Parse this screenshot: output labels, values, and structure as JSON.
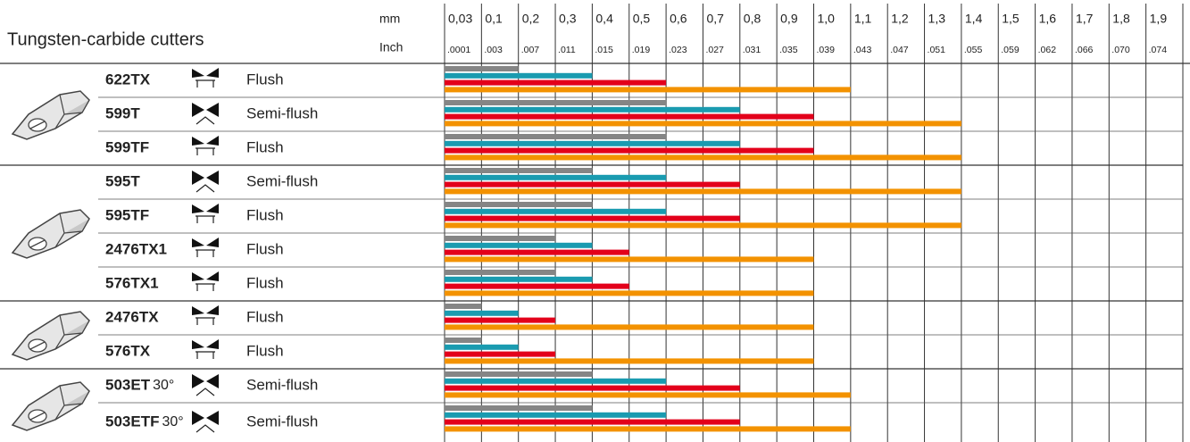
{
  "chart_data": {
    "type": "bar",
    "title": "Tungsten-carbide cutters",
    "xlabel": "mm",
    "x2label": "Inch",
    "categories": [
      "622TX",
      "599T",
      "599TF",
      "595T",
      "595TF",
      "2476TX1",
      "576TX1",
      "2476TX",
      "576TX",
      "503ET",
      "503ETF"
    ],
    "angles": [
      null,
      null,
      null,
      null,
      null,
      null,
      null,
      null,
      null,
      "30°",
      "30°"
    ],
    "cut_types": [
      "Flush",
      "Semi-flush",
      "Flush",
      "Semi-flush",
      "Flush",
      "Flush",
      "Flush",
      "Flush",
      "Flush",
      "Semi-flush",
      "Semi-flush"
    ],
    "xticks": [
      {
        "value": 0.03,
        "label": "0,03"
      },
      {
        "value": 0.1,
        "label": "0,1"
      },
      {
        "value": 0.2,
        "label": "0,2"
      },
      {
        "value": 0.3,
        "label": "0,3"
      },
      {
        "value": 0.4,
        "label": "0,4"
      },
      {
        "value": 0.5,
        "label": "0,5"
      },
      {
        "value": 0.6,
        "label": "0,6"
      },
      {
        "value": 0.7,
        "label": "0,7"
      },
      {
        "value": 0.8,
        "label": "0,8"
      },
      {
        "value": 0.9,
        "label": "0,9"
      },
      {
        "value": 1.0,
        "label": "1,0"
      },
      {
        "value": 1.1,
        "label": "1,1"
      },
      {
        "value": 1.2,
        "label": "1,2"
      },
      {
        "value": 1.3,
        "label": "1,3"
      },
      {
        "value": 1.4,
        "label": "1,4"
      },
      {
        "value": 1.5,
        "label": "1,5"
      },
      {
        "value": 1.6,
        "label": "1,6"
      },
      {
        "value": 1.7,
        "label": "1,7"
      },
      {
        "value": 1.8,
        "label": "1,8"
      },
      {
        "value": 1.9,
        "label": "1,9"
      }
    ],
    "x2ticks": [
      {
        "value": 0.0001,
        "label": ".0001"
      },
      {
        "value": 0.003,
        "label": ".003"
      },
      {
        "value": 0.007,
        "label": ".007"
      },
      {
        "value": 0.011,
        "label": ".011"
      },
      {
        "value": 0.015,
        "label": ".015"
      },
      {
        "value": 0.019,
        "label": ".019"
      },
      {
        "value": 0.023,
        "label": ".023"
      },
      {
        "value": 0.027,
        "label": ".027"
      },
      {
        "value": 0.031,
        "label": ".031"
      },
      {
        "value": 0.035,
        "label": ".035"
      },
      {
        "value": 0.039,
        "label": ".039"
      },
      {
        "value": 0.043,
        "label": ".043"
      },
      {
        "value": 0.047,
        "label": ".047"
      },
      {
        "value": 0.051,
        "label": ".051"
      },
      {
        "value": 0.055,
        "label": ".055"
      },
      {
        "value": 0.059,
        "label": ".059"
      },
      {
        "value": 0.062,
        "label": ".062"
      },
      {
        "value": 0.066,
        "label": ".066"
      },
      {
        "value": 0.07,
        "label": ".070"
      },
      {
        "value": 0.074,
        "label": ".074"
      }
    ],
    "series": [
      {
        "color": "#858585",
        "values": [
          0.1,
          0.5,
          0.5,
          0.3,
          0.3,
          0.2,
          0.2,
          0.03,
          0.03,
          0.3,
          0.3
        ]
      },
      {
        "color": "#1a9bb0",
        "values": [
          0.3,
          0.7,
          0.7,
          0.5,
          0.5,
          0.3,
          0.3,
          0.1,
          0.1,
          0.5,
          0.5
        ]
      },
      {
        "color": "#e3001b",
        "values": [
          0.5,
          0.9,
          0.9,
          0.7,
          0.7,
          0.4,
          0.4,
          0.2,
          0.2,
          0.7,
          0.7
        ]
      },
      {
        "color": "#f39200",
        "values": [
          1.0,
          1.3,
          1.3,
          1.3,
          1.3,
          0.9,
          0.9,
          0.9,
          0.9,
          1.0,
          1.0
        ]
      }
    ]
  }
}
